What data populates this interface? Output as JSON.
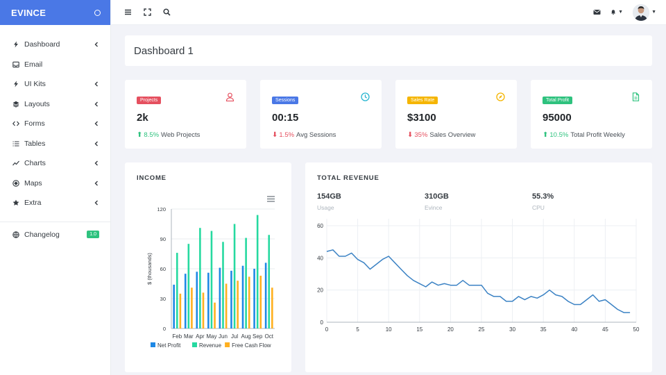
{
  "brand": {
    "name": "EVINCE"
  },
  "sidebar": {
    "items": [
      {
        "label": "Dashboard",
        "icon": "bolt-icon",
        "has_children": true
      },
      {
        "label": "Email",
        "icon": "inbox-icon",
        "has_children": false
      },
      {
        "label": "UI Kits",
        "icon": "bolt-icon",
        "has_children": true
      },
      {
        "label": "Layouts",
        "icon": "layers-icon",
        "has_children": true
      },
      {
        "label": "Forms",
        "icon": "code-icon",
        "has_children": true
      },
      {
        "label": "Tables",
        "icon": "list-icon",
        "has_children": true
      },
      {
        "label": "Charts",
        "icon": "trend-icon",
        "has_children": true
      },
      {
        "label": "Maps",
        "icon": "compass-icon",
        "has_children": true
      },
      {
        "label": "Extra",
        "icon": "star-icon",
        "has_children": true
      }
    ],
    "changelog": {
      "label": "Changelog",
      "badge": "1.0"
    }
  },
  "page": {
    "title": "Dashboard 1"
  },
  "stats": [
    {
      "badge": "Projects",
      "badge_color": "#e5505f",
      "icon": "user-icon",
      "icon_color": "#e5505f",
      "value": "2k",
      "direction": "up",
      "pct": "8.5%",
      "pct_color": "#2ec27e",
      "text": "Web Projects"
    },
    {
      "badge": "Sessions",
      "badge_color": "#4a78e6",
      "icon": "clock-icon",
      "icon_color": "#29b6d1",
      "value": "00:15",
      "direction": "down",
      "pct": "1.5%",
      "pct_color": "#e5505f",
      "text": "Avg Sessions"
    },
    {
      "badge": "Sales Rate",
      "badge_color": "#f5b500",
      "icon": "compass-icon",
      "icon_color": "#f5b500",
      "value": "$3100",
      "direction": "down",
      "pct": "35%",
      "pct_color": "#e5505f",
      "text": "Sales Overview"
    },
    {
      "badge": "Total Profit",
      "badge_color": "#2ec27e",
      "icon": "file-icon",
      "icon_color": "#2ec27e",
      "value": "95000",
      "direction": "up",
      "pct": "10.5%",
      "pct_color": "#2ec27e",
      "text": "Total Profit Weekly"
    }
  ],
  "income": {
    "title": "INCOME"
  },
  "revenue": {
    "title": "TOTAL REVENUE",
    "metrics": [
      {
        "value": "154GB",
        "label": "Usage"
      },
      {
        "value": "310GB",
        "label": "Evince"
      },
      {
        "value": "55.3%",
        "label": "CPU"
      }
    ]
  },
  "colors": {
    "accent": "#4a78e6",
    "net_profit": "#1e88e5",
    "revenue": "#26d9a0",
    "cash_flow": "#ffb020",
    "line": "#3b82c4"
  },
  "chart_data": [
    {
      "type": "bar",
      "title": "",
      "categories": [
        "Feb",
        "Mar",
        "Apr",
        "May",
        "Jun",
        "Jul",
        "Aug",
        "Sep",
        "Oct"
      ],
      "series": [
        {
          "name": "Net Profit",
          "color": "#1e88e5",
          "values": [
            44,
            55,
            57,
            56,
            61,
            58,
            63,
            60,
            66
          ]
        },
        {
          "name": "Revenue",
          "color": "#26d9a0",
          "values": [
            76,
            85,
            101,
            98,
            87,
            105,
            91,
            114,
            94
          ]
        },
        {
          "name": "Free Cash Flow",
          "color": "#ffb020",
          "values": [
            35,
            41,
            36,
            26,
            45,
            48,
            52,
            53,
            41
          ]
        }
      ],
      "xlabel": "",
      "ylabel": "$ (thousands)",
      "ylim": [
        0,
        120
      ],
      "yticks": [
        0,
        30,
        60,
        90,
        120
      ],
      "grid": true,
      "legend": "bottom"
    },
    {
      "type": "line",
      "title": "",
      "x": [
        0,
        1,
        2,
        3,
        4,
        5,
        6,
        7,
        8,
        9,
        10,
        11,
        12,
        13,
        14,
        15,
        16,
        17,
        18,
        19,
        20,
        21,
        22,
        23,
        24,
        25,
        26,
        27,
        28,
        29,
        30,
        31,
        32,
        33,
        34,
        35,
        36,
        37,
        38,
        39,
        40,
        41,
        42,
        43,
        44,
        45,
        46,
        47,
        48,
        49
      ],
      "series": [
        {
          "name": "",
          "color": "#3b82c4",
          "values": [
            44,
            45,
            41,
            41,
            43,
            39,
            37,
            33,
            36,
            39,
            41,
            37,
            33,
            29,
            26,
            24,
            22,
            25,
            23,
            24,
            23,
            23,
            26,
            23,
            23,
            23,
            18,
            16,
            16,
            13,
            13,
            16,
            14,
            16,
            15,
            17,
            20,
            17,
            16,
            13,
            11,
            11,
            14,
            17,
            13,
            14,
            11,
            8,
            6,
            6
          ]
        }
      ],
      "xlabel": "",
      "ylabel": "",
      "xlim": [
        0,
        50
      ],
      "ylim": [
        0,
        60
      ],
      "xticks": [
        0,
        5,
        10,
        15,
        20,
        25,
        30,
        35,
        40,
        45,
        50
      ],
      "yticks": [
        0,
        20,
        40,
        60
      ],
      "grid": true,
      "legend": "none"
    }
  ]
}
